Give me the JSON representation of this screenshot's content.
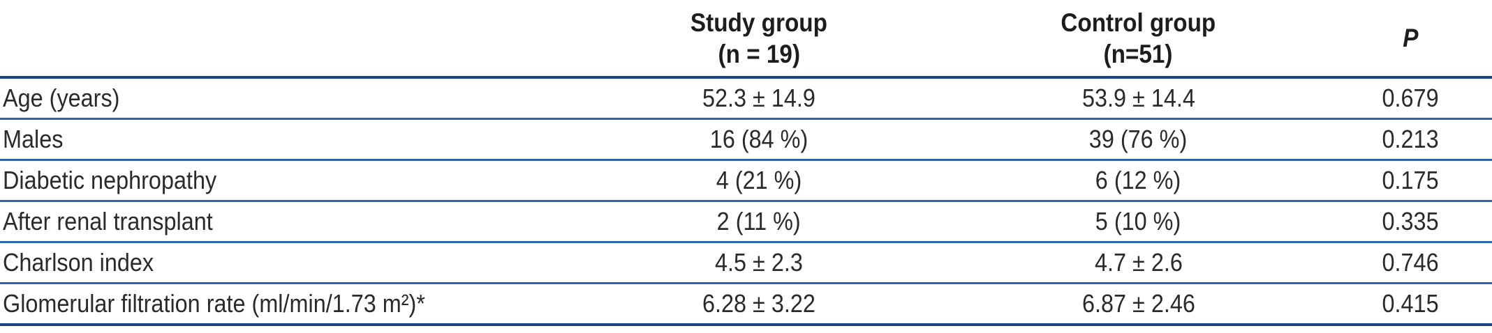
{
  "table": {
    "columns": [
      {
        "label": ""
      },
      {
        "label": "Study group",
        "sublabel": "(n = 19)"
      },
      {
        "label": "Control group",
        "sublabel": "(n=51)"
      },
      {
        "label": "P"
      }
    ],
    "rows": [
      {
        "label": "Age (years)",
        "study": "52.3 ± 14.9",
        "control": "53.9 ± 14.4",
        "p": "0.679"
      },
      {
        "label": "Males",
        "study": "16 (84 %)",
        "control": "39 (76 %)",
        "p": "0.213"
      },
      {
        "label": "Diabetic nephropathy",
        "study": "4 (21 %)",
        "control": "6 (12 %)",
        "p": "0.175"
      },
      {
        "label": "After renal transplant",
        "study": "2 (11 %)",
        "control": "5 (10 %)",
        "p": "0.335"
      },
      {
        "label": "Charlson index",
        "study": "4.5 ± 2.3",
        "control": "4.7 ± 2.6",
        "p": "0.746"
      },
      {
        "label": "Glomerular filtration rate (ml/min/1.73 m²)*",
        "study": "6.28 ± 3.22",
        "control": "6.87 ± 2.46",
        "p": "0.415"
      }
    ],
    "colors": {
      "rule_heavy": "#1b4283",
      "rule_light": "#2e62ac",
      "header_text": "#1d1d1b",
      "body_text": "#2a2a28"
    }
  }
}
